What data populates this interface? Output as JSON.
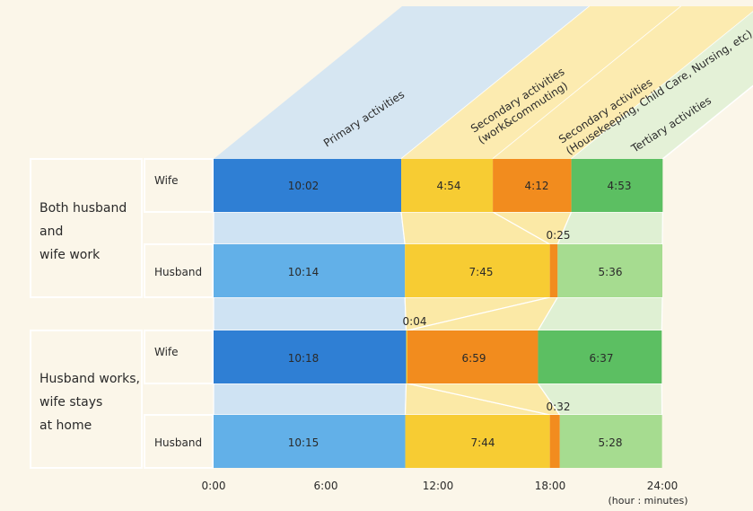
{
  "chart_data": {
    "type": "bar",
    "stacked": true,
    "orientation": "horizontal",
    "x_unit_label": "(hour : minutes)",
    "x_ticks": [
      "0:00",
      "6:00",
      "12:00",
      "18:00",
      "24:00"
    ],
    "xlim_minutes": [
      0,
      1440
    ],
    "activity_categories": [
      {
        "key": "primary",
        "label": "Primary activities"
      },
      {
        "key": "secondary_work",
        "label_lines": [
          "Secondary activities",
          "(work&commuting)"
        ]
      },
      {
        "key": "secondary_house",
        "label_lines": [
          "Secondary activities",
          "(Housekeeping, Child Care, Nursing, etc)"
        ]
      },
      {
        "key": "tertiary",
        "label": "Tertiary activities"
      }
    ],
    "groups": [
      {
        "label_lines": [
          "Both husband",
          "and",
          "wife work"
        ],
        "rows": [
          {
            "person": "Wife",
            "segments": [
              {
                "category": "primary",
                "value": "10:02",
                "minutes": 602
              },
              {
                "category": "secondary_work",
                "value": "4:54",
                "minutes": 294
              },
              {
                "category": "secondary_house",
                "value": "4:12",
                "minutes": 252
              },
              {
                "category": "tertiary",
                "value": "4:53",
                "minutes": 293
              }
            ]
          },
          {
            "person": "Husband",
            "segments": [
              {
                "category": "primary",
                "value": "10:14",
                "minutes": 614
              },
              {
                "category": "secondary_work",
                "value": "7:45",
                "minutes": 465
              },
              {
                "category": "secondary_house",
                "value": "0:25",
                "minutes": 25
              },
              {
                "category": "tertiary",
                "value": "5:36",
                "minutes": 336
              }
            ]
          }
        ]
      },
      {
        "label_lines": [
          "Husband works,",
          "wife stays",
          "at home"
        ],
        "rows": [
          {
            "person": "Wife",
            "segments": [
              {
                "category": "primary",
                "value": "10:18",
                "minutes": 618
              },
              {
                "category": "secondary_work",
                "value": "0:04",
                "minutes": 4
              },
              {
                "category": "secondary_house",
                "value": "6:59",
                "minutes": 419
              },
              {
                "category": "tertiary",
                "value": "6:37",
                "minutes": 397
              }
            ]
          },
          {
            "person": "Husband",
            "segments": [
              {
                "category": "primary",
                "value": "10:15",
                "minutes": 615
              },
              {
                "category": "secondary_work",
                "value": "7:44",
                "minutes": 464
              },
              {
                "category": "secondary_house",
                "value": "0:32",
                "minutes": 32
              },
              {
                "category": "tertiary",
                "value": "5:28",
                "minutes": 328
              }
            ]
          }
        ]
      }
    ],
    "colors": {
      "primary_wife": "#2f7fd4",
      "primary_husband": "#62b0e8",
      "secondary_work": "#f7cc33",
      "secondary_house": "#f28c1e",
      "tertiary_wife": "#5cbf62",
      "tertiary_husband": "#a6dc90",
      "band_primary": "#cfe3f3",
      "band_secondary": "#fbe9a6",
      "band_tertiary": "#dff0d3",
      "background": "#fbf6e9"
    }
  }
}
